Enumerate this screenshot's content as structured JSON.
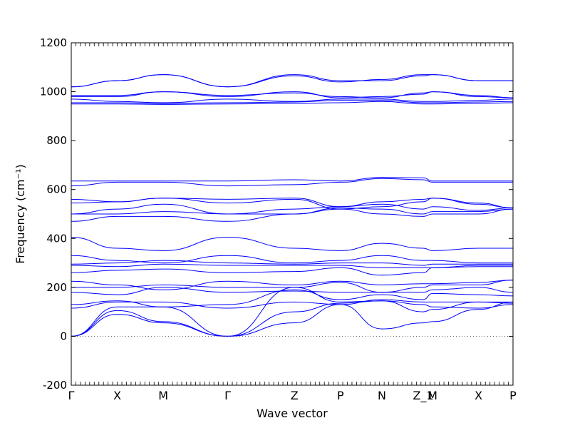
{
  "chart_data": {
    "type": "line",
    "xlabel": "Wave vector",
    "ylabel": "Frequency (cm⁻¹)",
    "ylim": [
      -200,
      1200
    ],
    "yticks": [
      -200,
      0,
      200,
      400,
      600,
      800,
      1000,
      1200
    ],
    "xlim": [
      0,
      9.6
    ],
    "path_ticks": [
      {
        "label": "Γ",
        "x": 0
      },
      {
        "label": "X",
        "x": 1.0
      },
      {
        "label": "M",
        "x": 2.0
      },
      {
        "label": "Γ",
        "x": 3.4
      },
      {
        "label": "Z",
        "x": 4.85
      },
      {
        "label": "P",
        "x": 5.85
      },
      {
        "label": "N",
        "x": 6.75
      },
      {
        "label": "Z_1",
        "x": 7.65
      },
      {
        "label": "M",
        "x": 7.85
      },
      {
        "label": "X",
        "x": 8.85
      },
      {
        "label": "P",
        "x": 9.6
      }
    ],
    "grid": false,
    "zero_line": true,
    "line_color": "#0000ff",
    "series": [
      {
        "x": [
          0,
          1.0,
          2.0,
          3.4,
          4.85,
          5.85,
          6.75,
          7.65,
          7.85,
          8.85,
          9.6
        ],
        "values": [
          0,
          90,
          55,
          0,
          55,
          130,
          30,
          55,
          60,
          110,
          140
        ]
      },
      {
        "x": [
          0,
          1.0,
          2.0,
          3.4,
          4.85,
          5.85,
          6.75,
          7.65,
          7.85,
          8.85,
          9.6
        ],
        "values": [
          0,
          105,
          60,
          0,
          200,
          140,
          145,
          130,
          120,
          115,
          130
        ]
      },
      {
        "x": [
          0,
          1.0,
          2.0,
          3.4,
          4.85,
          5.85,
          6.75,
          7.65,
          7.85,
          8.85,
          9.6
        ],
        "values": [
          0,
          120,
          120,
          0,
          100,
          135,
          145,
          100,
          110,
          140,
          140
        ]
      },
      {
        "x": [
          0,
          1.0,
          2.0,
          3.4,
          4.85,
          5.85,
          6.75,
          7.65,
          7.85,
          8.85,
          9.6
        ],
        "values": [
          115,
          140,
          140,
          115,
          140,
          130,
          150,
          140,
          140,
          140,
          135
        ]
      },
      {
        "x": [
          0,
          1.0,
          2.0,
          3.4,
          4.85,
          5.85,
          6.75,
          7.65,
          7.85,
          8.85,
          9.6
        ],
        "values": [
          130,
          145,
          120,
          130,
          190,
          150,
          170,
          150,
          175,
          170,
          165
        ]
      },
      {
        "x": [
          0,
          1.0,
          2.0,
          3.4,
          4.85,
          5.85,
          6.75,
          7.65,
          7.85,
          8.85,
          9.6
        ],
        "values": [
          180,
          170,
          200,
          180,
          185,
          180,
          180,
          180,
          190,
          200,
          180
        ]
      },
      {
        "x": [
          0,
          1.0,
          2.0,
          3.4,
          4.85,
          5.85,
          6.75,
          7.65,
          7.85,
          8.85,
          9.6
        ],
        "values": [
          200,
          200,
          210,
          200,
          200,
          220,
          180,
          200,
          210,
          210,
          230
        ]
      },
      {
        "x": [
          0,
          1.0,
          2.0,
          3.4,
          4.85,
          5.85,
          6.75,
          7.65,
          7.85,
          8.85,
          9.6
        ],
        "values": [
          225,
          210,
          190,
          225,
          210,
          225,
          210,
          215,
          215,
          220,
          230
        ]
      },
      {
        "x": [
          0,
          1.0,
          2.0,
          3.4,
          4.85,
          5.85,
          6.75,
          7.65,
          7.85,
          8.85,
          9.6
        ],
        "values": [
          260,
          270,
          275,
          260,
          265,
          280,
          250,
          260,
          280,
          285,
          285
        ]
      },
      {
        "x": [
          0,
          1.0,
          2.0,
          3.4,
          4.85,
          5.85,
          6.75,
          7.65,
          7.85,
          8.85,
          9.6
        ],
        "values": [
          290,
          285,
          295,
          290,
          290,
          290,
          280,
          280,
          280,
          290,
          290
        ]
      },
      {
        "x": [
          0,
          1.0,
          2.0,
          3.4,
          4.85,
          5.85,
          6.75,
          7.65,
          7.85,
          8.85,
          9.6
        ],
        "values": [
          295,
          300,
          310,
          300,
          295,
          300,
          300,
          290,
          295,
          295,
          295
        ]
      },
      {
        "x": [
          0,
          1.0,
          2.0,
          3.4,
          4.85,
          5.85,
          6.75,
          7.65,
          7.85,
          8.85,
          9.6
        ],
        "values": [
          330,
          310,
          300,
          330,
          300,
          310,
          330,
          310,
          310,
          300,
          300
        ]
      },
      {
        "x": [
          0,
          1.0,
          2.0,
          3.4,
          4.85,
          5.85,
          6.75,
          7.65,
          7.85,
          8.85,
          9.6
        ],
        "values": [
          405,
          360,
          350,
          405,
          360,
          350,
          380,
          360,
          350,
          360,
          360
        ]
      },
      {
        "x": [
          0,
          1.0,
          2.0,
          3.4,
          4.85,
          5.85,
          6.75,
          7.65,
          7.85,
          8.85,
          9.6
        ],
        "values": [
          470,
          490,
          490,
          470,
          500,
          520,
          500,
          490,
          500,
          500,
          520
        ]
      },
      {
        "x": [
          0,
          1.0,
          2.0,
          3.4,
          4.85,
          5.85,
          6.75,
          7.65,
          7.85,
          8.85,
          9.6
        ],
        "values": [
          500,
          500,
          510,
          500,
          500,
          525,
          520,
          500,
          510,
          510,
          520
        ]
      },
      {
        "x": [
          0,
          1.0,
          2.0,
          3.4,
          4.85,
          5.85,
          6.75,
          7.65,
          7.85,
          8.85,
          9.6
        ],
        "values": [
          500,
          520,
          540,
          500,
          520,
          530,
          540,
          520,
          530,
          515,
          525
        ]
      },
      {
        "x": [
          0,
          1.0,
          2.0,
          3.4,
          4.85,
          5.85,
          6.75,
          7.65,
          7.85,
          8.85,
          9.6
        ],
        "values": [
          545,
          550,
          565,
          545,
          560,
          520,
          530,
          550,
          565,
          540,
          525
        ]
      },
      {
        "x": [
          0,
          1.0,
          2.0,
          3.4,
          4.85,
          5.85,
          6.75,
          7.65,
          7.85,
          8.85,
          9.6
        ],
        "values": [
          560,
          550,
          565,
          560,
          565,
          530,
          550,
          560,
          565,
          545,
          525
        ]
      },
      {
        "x": [
          0,
          1.0,
          2.0,
          3.4,
          4.85,
          5.85,
          6.75,
          7.65,
          7.85,
          8.85,
          9.6
        ],
        "values": [
          615,
          630,
          630,
          615,
          620,
          630,
          645,
          640,
          630,
          630,
          630
        ]
      },
      {
        "x": [
          0,
          1.0,
          2.0,
          3.4,
          4.85,
          5.85,
          6.75,
          7.65,
          7.85,
          8.85,
          9.6
        ],
        "values": [
          635,
          635,
          635,
          635,
          640,
          635,
          650,
          648,
          635,
          635,
          635
        ]
      },
      {
        "x": [
          0,
          1.0,
          2.0,
          3.4,
          4.85,
          5.85,
          6.75,
          7.65,
          7.85,
          8.85,
          9.6
        ],
        "values": [
          950,
          950,
          948,
          950,
          952,
          955,
          960,
          950,
          950,
          952,
          955
        ]
      },
      {
        "x": [
          0,
          1.0,
          2.0,
          3.4,
          4.85,
          5.85,
          6.75,
          7.65,
          7.85,
          8.85,
          9.6
        ],
        "values": [
          955,
          955,
          952,
          955,
          958,
          965,
          965,
          955,
          955,
          958,
          960
        ]
      },
      {
        "x": [
          0,
          1.0,
          2.0,
          3.4,
          4.85,
          5.85,
          6.75,
          7.65,
          7.85,
          8.85,
          9.6
        ],
        "values": [
          970,
          960,
          955,
          970,
          960,
          970,
          970,
          960,
          960,
          965,
          970
        ]
      },
      {
        "x": [
          0,
          1.0,
          2.0,
          3.4,
          4.85,
          5.85,
          6.75,
          7.65,
          7.85,
          8.85,
          9.6
        ],
        "values": [
          980,
          980,
          1000,
          980,
          1000,
          975,
          980,
          990,
          1000,
          980,
          975
        ]
      },
      {
        "x": [
          0,
          1.0,
          2.0,
          3.4,
          4.85,
          5.85,
          6.75,
          7.65,
          7.85,
          8.85,
          9.6
        ],
        "values": [
          985,
          985,
          1000,
          985,
          995,
          980,
          975,
          995,
          1000,
          985,
          975
        ]
      },
      {
        "x": [
          0,
          1.0,
          2.0,
          3.4,
          4.85,
          5.85,
          6.75,
          7.65,
          7.85,
          8.85,
          9.6
        ],
        "values": [
          1020,
          1045,
          1070,
          1020,
          1070,
          1045,
          1045,
          1065,
          1070,
          1045,
          1045
        ]
      },
      {
        "x": [
          0,
          1.0,
          2.0,
          3.4,
          4.85,
          5.85,
          6.75,
          7.65,
          7.85,
          8.85,
          9.6
        ],
        "values": [
          1020,
          1045,
          1070,
          1020,
          1065,
          1040,
          1050,
          1070,
          1070,
          1045,
          1045
        ]
      }
    ]
  }
}
